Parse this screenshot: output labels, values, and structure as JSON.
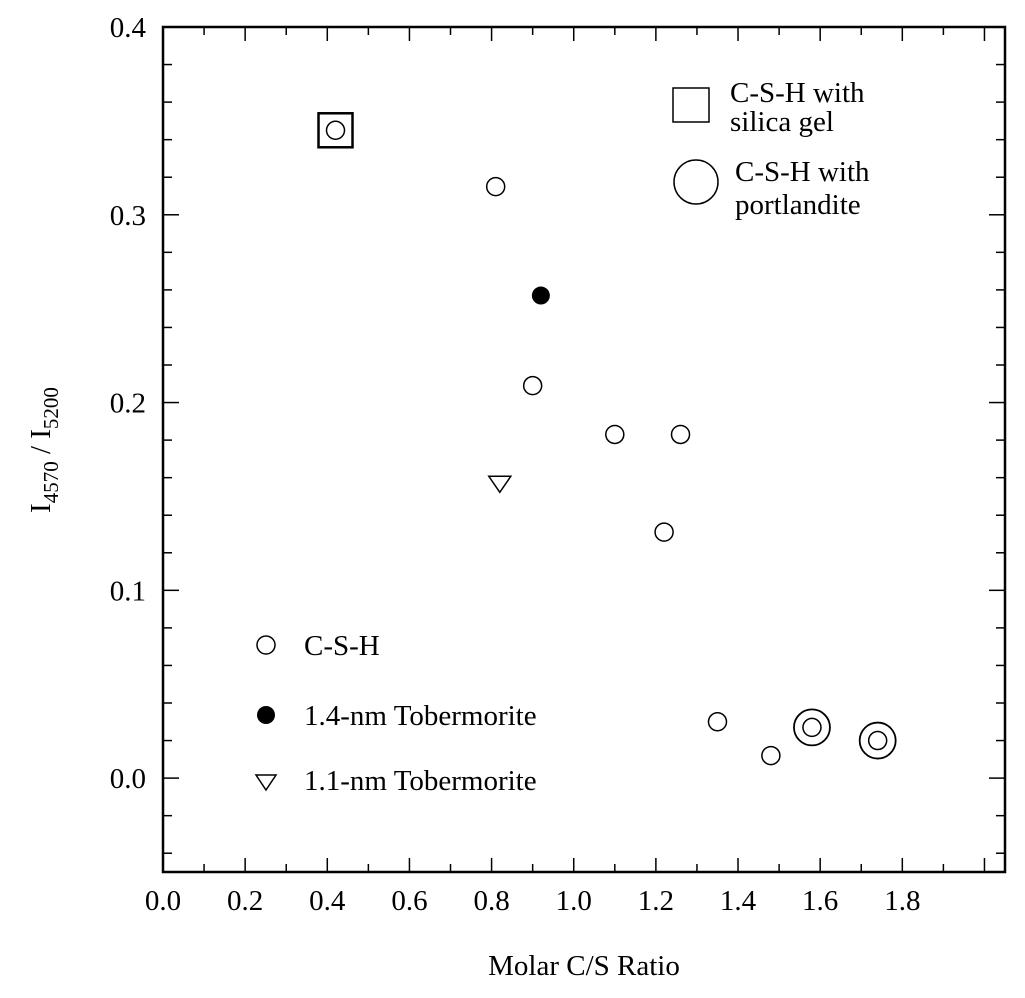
{
  "chart_data": {
    "type": "scatter",
    "title": "",
    "xlabel": "Molar C/S Ratio",
    "ylabel": {
      "main": "I",
      "sub1": "4570",
      "sep": " / I",
      "sub2": "5200"
    },
    "xlim": [
      0,
      2.05
    ],
    "ylim": [
      -0.05,
      0.4
    ],
    "x_ticks": [
      "0.0",
      "0.2",
      "0.4",
      "0.6",
      "0.8",
      "1.0",
      "1.2",
      "1.4",
      "1.6",
      "1.8"
    ],
    "x_tick_values": [
      0,
      0.2,
      0.4,
      0.6,
      0.8,
      1.0,
      1.2,
      1.4,
      1.6,
      1.8
    ],
    "y_ticks": [
      "0.0",
      "0.1",
      "0.2",
      "0.3",
      "0.4"
    ],
    "y_tick_values": [
      0,
      0.1,
      0.2,
      0.3,
      0.4
    ],
    "grid": false,
    "legend_series": [
      {
        "name": "C-S-H",
        "marker": "open-circle"
      },
      {
        "name": "1.4-nm Tobermorite",
        "marker": "filled-circle"
      },
      {
        "name": "1.1-nm Tobermorite",
        "marker": "open-triangle-down"
      }
    ],
    "legend_overlays": [
      {
        "line1": "C-S-H with",
        "line2": "silica gel",
        "marker": "open-square"
      },
      {
        "line1": "C-S-H with",
        "line2": "portlandite",
        "marker": "large-open-circle"
      }
    ],
    "series": [
      {
        "name": "C-S-H",
        "points": [
          {
            "x": 0.42,
            "y": 0.345,
            "overlay": "square"
          },
          {
            "x": 0.81,
            "y": 0.315
          },
          {
            "x": 0.9,
            "y": 0.209
          },
          {
            "x": 1.1,
            "y": 0.183
          },
          {
            "x": 1.26,
            "y": 0.183
          },
          {
            "x": 1.22,
            "y": 0.131
          },
          {
            "x": 1.35,
            "y": 0.03
          },
          {
            "x": 1.48,
            "y": 0.012
          },
          {
            "x": 1.58,
            "y": 0.027,
            "overlay": "large-circle"
          },
          {
            "x": 1.74,
            "y": 0.02,
            "overlay": "large-circle"
          }
        ]
      },
      {
        "name": "1.4-nm Tobermorite",
        "points": [
          {
            "x": 0.92,
            "y": 0.257
          }
        ]
      },
      {
        "name": "1.1-nm Tobermorite",
        "points": [
          {
            "x": 0.82,
            "y": 0.157
          }
        ]
      }
    ]
  }
}
